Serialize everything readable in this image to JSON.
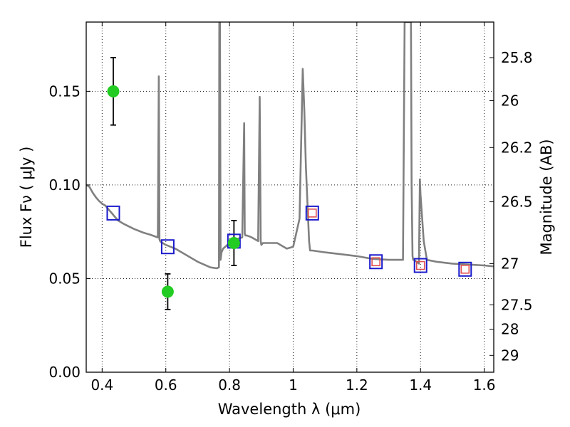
{
  "chart_data": {
    "type": "line",
    "xlabel": "Wavelength  λ (μm)",
    "ylabel": "Flux  Fν  ( μJy )",
    "y2label": "Magnitude (AB)",
    "xlim": [
      0.35,
      1.63
    ],
    "ylim": [
      0.0,
      0.187
    ],
    "grid": true,
    "x_ticks": [
      0.4,
      0.6,
      0.8,
      1.0,
      1.2,
      1.4,
      1.6
    ],
    "x_tick_labels": [
      "0.4",
      "0.6",
      "0.8",
      "1",
      "1.2",
      "1.4",
      "1.6"
    ],
    "y_ticks": [
      0.0,
      0.05,
      0.1,
      0.15
    ],
    "y_tick_labels": [
      "0.00",
      "0.05",
      "0.10",
      "0.15"
    ],
    "y2_ticks": [
      {
        "label": "25.8",
        "flux": 0.168
      },
      {
        "label": "26",
        "flux": 0.145
      },
      {
        "label": "26.2",
        "flux": 0.12
      },
      {
        "label": "26.5",
        "flux": 0.091
      },
      {
        "label": "27",
        "flux": 0.058
      },
      {
        "label": "27.5",
        "flux": 0.036
      },
      {
        "label": "28",
        "flux": 0.023
      },
      {
        "label": "29",
        "flux": 0.009
      }
    ],
    "series": [
      {
        "kind": "spectrum",
        "color": "#808080",
        "x": [
          0.35,
          0.36,
          0.37,
          0.38,
          0.39,
          0.4,
          0.41,
          0.42,
          0.43,
          0.44,
          0.45,
          0.47,
          0.5,
          0.53,
          0.55,
          0.575,
          0.578,
          0.58,
          0.582,
          0.585,
          0.6,
          0.63,
          0.66,
          0.7,
          0.74,
          0.76,
          0.767,
          0.768,
          0.77,
          0.772,
          0.775,
          0.78,
          0.8,
          0.82,
          0.84,
          0.846,
          0.848,
          0.85,
          0.855,
          0.87,
          0.89,
          0.895,
          0.898,
          0.9,
          0.905,
          0.92,
          0.95,
          0.98,
          1.0,
          1.02,
          1.03,
          1.035,
          1.04,
          1.05,
          1.053,
          1.06,
          1.1,
          1.15,
          1.2,
          1.25,
          1.3,
          1.345,
          1.35,
          1.355,
          1.37,
          1.372,
          1.375,
          1.377,
          1.38,
          1.395,
          1.398,
          1.4,
          1.41,
          1.42,
          1.45,
          1.5,
          1.55,
          1.6,
          1.63
        ],
        "y": [
          0.1,
          0.099,
          0.096,
          0.0935,
          0.0915,
          0.09,
          0.089,
          0.087,
          0.085,
          0.083,
          0.081,
          0.079,
          0.0765,
          0.0745,
          0.0735,
          0.072,
          0.158,
          0.071,
          0.07,
          0.0695,
          0.068,
          0.066,
          0.063,
          0.059,
          0.056,
          0.0555,
          0.056,
          0.187,
          0.187,
          0.06,
          0.064,
          0.066,
          0.069,
          0.071,
          0.072,
          0.133,
          0.074,
          0.073,
          0.073,
          0.072,
          0.07,
          0.147,
          0.07,
          0.068,
          0.069,
          0.069,
          0.069,
          0.066,
          0.067,
          0.082,
          0.162,
          0.14,
          0.11,
          0.07,
          0.065,
          0.065,
          0.064,
          0.063,
          0.062,
          0.0605,
          0.06,
          0.06,
          0.187,
          0.187,
          0.187,
          0.1,
          0.062,
          0.06,
          0.06,
          0.058,
          0.103,
          0.095,
          0.07,
          0.06,
          0.059,
          0.058,
          0.0575,
          0.057,
          0.0565
        ]
      },
      {
        "kind": "observed",
        "color": "#22cc22",
        "x": [
          0.435,
          0.606,
          0.814
        ],
        "y": [
          0.15,
          0.043,
          0.069
        ],
        "yerr": [
          0.018,
          0.0095,
          0.012
        ]
      },
      {
        "kind": "model-bandpass",
        "color": "#1a1acc",
        "x": [
          0.435,
          0.606,
          0.814,
          1.06,
          1.26,
          1.4,
          1.54
        ],
        "y": [
          0.085,
          0.067,
          0.07,
          0.085,
          0.059,
          0.057,
          0.055
        ]
      },
      {
        "kind": "model-bandpass-inner",
        "color": "#e05050",
        "x": [
          1.06,
          1.26,
          1.4,
          1.54
        ],
        "y": [
          0.085,
          0.059,
          0.057,
          0.055
        ]
      }
    ]
  }
}
